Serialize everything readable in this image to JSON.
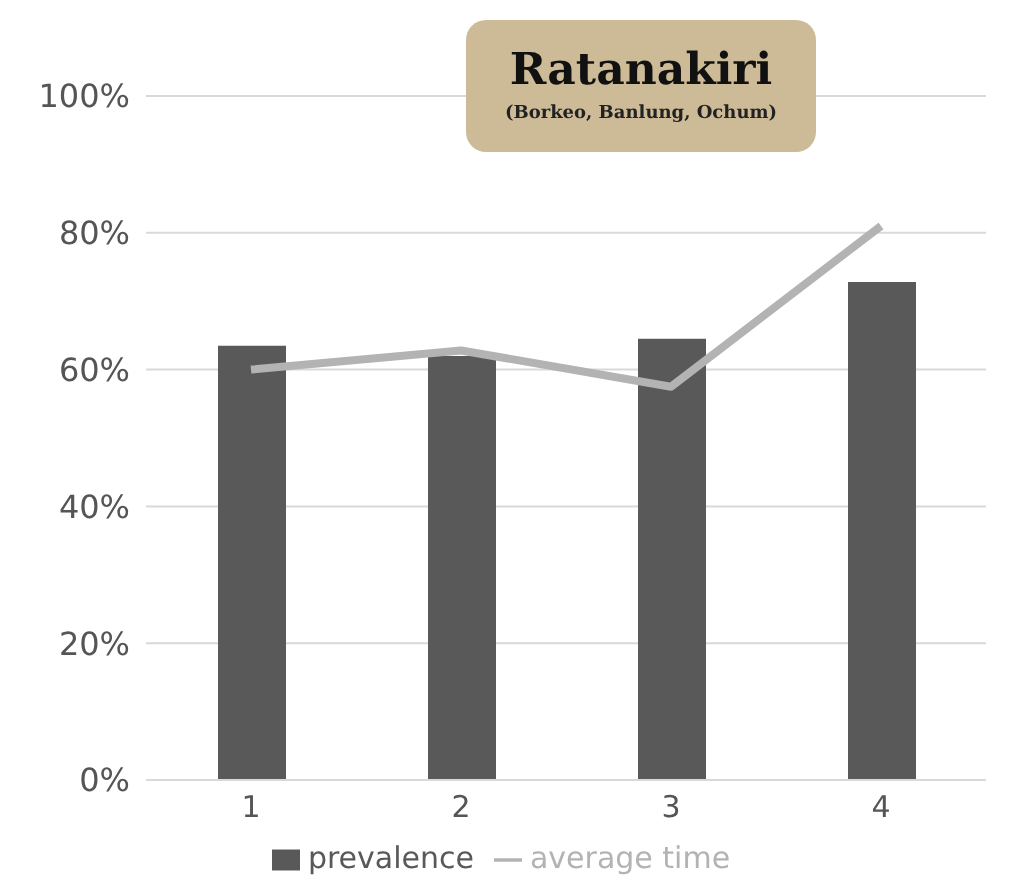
{
  "chart_data": {
    "type": "bar",
    "title": "Ratanakiri",
    "subtitle": "(Borkeo, Banlung, Ochum)",
    "categories": [
      "1",
      "2",
      "3",
      "4"
    ],
    "series": [
      {
        "name": "prevalence",
        "color": "#595959",
        "values": [
          63.5,
          62,
          64.5,
          72.8
        ]
      },
      {
        "name": "average time",
        "type": "line",
        "color": "#b3b3b3",
        "values": [
          60,
          62.8,
          57.5,
          81
        ]
      }
    ],
    "ylim": [
      0,
      100
    ],
    "yticks": [
      {
        "value": 0,
        "label": "0%"
      },
      {
        "value": 20,
        "label": "20%"
      },
      {
        "value": 40,
        "label": "40%"
      },
      {
        "value": 60,
        "label": "60%"
      },
      {
        "value": 80,
        "label": "80%"
      },
      {
        "value": 100,
        "label": "100%"
      }
    ],
    "grid": "y",
    "legend": "bottom"
  }
}
